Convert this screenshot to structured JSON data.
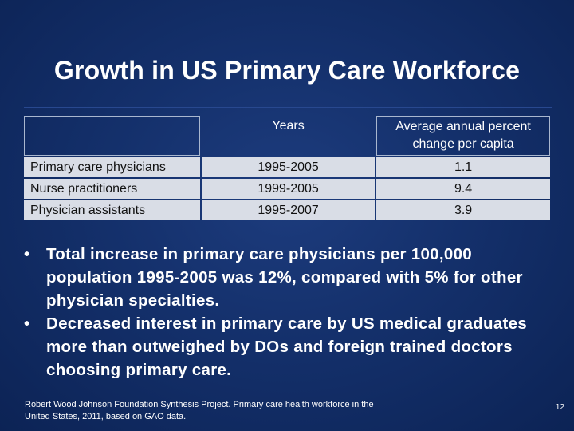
{
  "slide": {
    "title": "Growth in US Primary Care Workforce",
    "page_number": "12"
  },
  "table": {
    "headers": [
      "",
      "Years",
      "Average annual percent change per capita"
    ],
    "rows": [
      {
        "label": "Primary care physicians",
        "years": "1995-2005",
        "value": "1.1"
      },
      {
        "label": "Nurse practitioners",
        "years": "1999-2005",
        "value": "9.4"
      },
      {
        "label": "Physician assistants",
        "years": "1995-2007",
        "value": "3.9"
      }
    ]
  },
  "bullets": [
    {
      "marker": "•",
      "text": "Total increase in primary care physicians per 100,000 population 1995-2005 was 12%, compared with 5% for other physician specialties."
    },
    {
      "marker": "•",
      "text": "Decreased interest in primary care by US medical graduates more than outweighed by DOs and foreign trained doctors choosing primary care."
    }
  ],
  "footer": {
    "line1": "Robert Wood Johnson Foundation Synthesis Project. Primary care health workforce in the",
    "line2": "United States, 2011, based on GAO data."
  }
}
